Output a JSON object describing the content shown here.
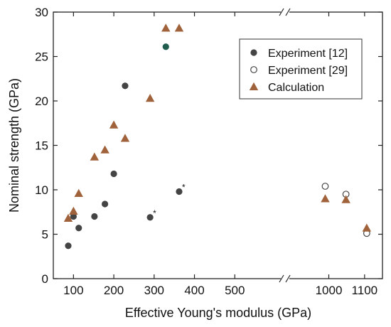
{
  "chart_data": {
    "type": "scatter",
    "xlabel": "Effective Young's modulus (GPa)",
    "ylabel": "Nominal strength (GPa)",
    "x_broken_axis": true,
    "x_segments": [
      {
        "range": [
          50,
          600
        ],
        "ticks": [
          100,
          200,
          300,
          400,
          500
        ],
        "tick_labels": [
          "100",
          "200",
          "300",
          "400",
          "500"
        ]
      },
      {
        "range": [
          850,
          1150
        ],
        "ticks": [
          1000,
          1100
        ],
        "tick_labels": [
          "1000",
          "1100"
        ]
      }
    ],
    "ylim": [
      0,
      30
    ],
    "yticks": [
      0,
      5,
      10,
      15,
      20,
      25,
      30
    ],
    "ytick_labels": [
      "0",
      "5",
      "10",
      "15",
      "20",
      "25",
      "30"
    ],
    "legend_position": "top-right",
    "series": [
      {
        "name": "Experiment [12]",
        "marker": "filled-circle",
        "color": "#444444",
        "points": [
          {
            "x": 87,
            "y": 3.7
          },
          {
            "x": 100,
            "y": 7.0
          },
          {
            "x": 113,
            "y": 5.7
          },
          {
            "x": 152,
            "y": 7.0
          },
          {
            "x": 178,
            "y": 8.4
          },
          {
            "x": 200,
            "y": 11.8
          },
          {
            "x": 228,
            "y": 21.7
          },
          {
            "x": 290,
            "y": 6.9
          },
          {
            "x": 362,
            "y": 9.8
          }
        ]
      },
      {
        "name": "Experiment [29]",
        "marker": "open-circle",
        "color": "#444444",
        "points": [
          {
            "x": 990,
            "y": 10.4
          },
          {
            "x": 1048,
            "y": 9.5
          },
          {
            "x": 1106,
            "y": 5.1
          }
        ]
      },
      {
        "name": "Calculation",
        "marker": "triangle",
        "color": "#a0623a",
        "points": [
          {
            "x": 87,
            "y": 6.8
          },
          {
            "x": 100,
            "y": 7.6
          },
          {
            "x": 113,
            "y": 9.6
          },
          {
            "x": 152,
            "y": 13.7
          },
          {
            "x": 178,
            "y": 14.5
          },
          {
            "x": 200,
            "y": 17.3
          },
          {
            "x": 228,
            "y": 15.8
          },
          {
            "x": 290,
            "y": 20.3
          },
          {
            "x": 329,
            "y": 28.2
          },
          {
            "x": 362,
            "y": 28.2
          },
          {
            "x": 990,
            "y": 9.0
          },
          {
            "x": 1048,
            "y": 8.9
          },
          {
            "x": 1106,
            "y": 5.7
          }
        ]
      }
    ],
    "highlight_point": {
      "x": 329,
      "y": 26.1,
      "color": "#1f5c4e"
    },
    "annotations": [
      {
        "text": "*",
        "x": 290,
        "y": 6.9
      },
      {
        "text": "*",
        "x": 362,
        "y": 9.8
      }
    ]
  }
}
